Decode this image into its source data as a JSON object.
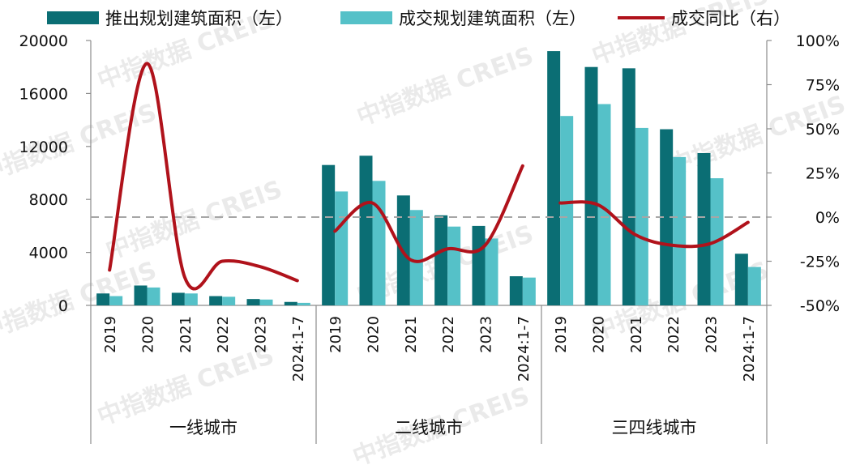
{
  "chart_data": {
    "type": "bar",
    "legend": {
      "position": "top",
      "items": [
        {
          "key": "launch",
          "label": "推出规划建筑面积（左）",
          "color": "#0b6e74",
          "kind": "bar"
        },
        {
          "key": "deal",
          "label": "成交规划建筑面积（左）",
          "color": "#55c1c8",
          "kind": "bar"
        },
        {
          "key": "yoy",
          "label": "成交同比（右）",
          "color": "#b0121b",
          "kind": "line"
        }
      ]
    },
    "y_left": {
      "min": 0,
      "max": 20000,
      "ticks": [
        "0",
        "4000",
        "8000",
        "12000",
        "16000",
        "20000"
      ]
    },
    "y_right": {
      "min": -50,
      "max": 100,
      "ticks": [
        "-50%",
        "-25%",
        "0%",
        "25%",
        "50%",
        "75%",
        "100%"
      ]
    },
    "reference_line": {
      "value": 0,
      "axis": "right",
      "style": "dashed"
    },
    "categories": [
      "2019",
      "2020",
      "2021",
      "2022",
      "2023",
      "2024:1-7"
    ],
    "groups": [
      {
        "name": "一线城市",
        "launch": [
          900,
          1500,
          950,
          700,
          480,
          260
        ],
        "deal": [
          700,
          1350,
          900,
          650,
          440,
          190
        ],
        "yoy": [
          -30,
          87,
          -34,
          -25,
          -28,
          -36
        ]
      },
      {
        "name": "二线城市",
        "launch": [
          10600,
          11300,
          8300,
          6800,
          6000,
          2200
        ],
        "deal": [
          8600,
          9400,
          7200,
          5950,
          5050,
          2100
        ],
        "yoy": [
          -8,
          8,
          -24,
          -18,
          -16,
          29
        ]
      },
      {
        "name": "三四线城市",
        "launch": [
          19200,
          18000,
          17900,
          13300,
          11500,
          3900
        ],
        "deal": [
          14300,
          15200,
          13400,
          11200,
          9600,
          2900
        ],
        "yoy": [
          8,
          7,
          -10,
          -16,
          -15,
          -3
        ]
      }
    ],
    "watermark": "中指数据 CREIS",
    "grid": false
  }
}
